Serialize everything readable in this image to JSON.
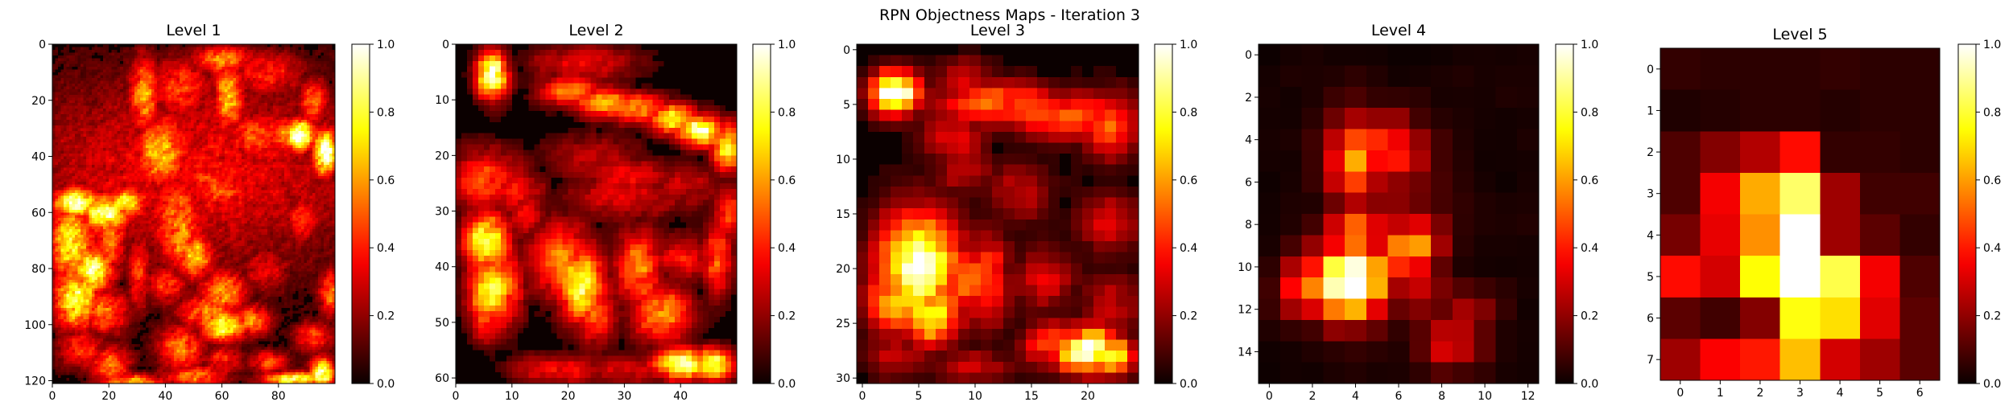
{
  "figure": {
    "title": "RPN Objectness Maps - Iteration 3"
  },
  "chart_data": [
    {
      "type": "heatmap",
      "title": "Level 1",
      "colormap": "hot",
      "colorbar_ticks": [
        "0.0",
        "0.2",
        "0.4",
        "0.6",
        "0.8",
        "1.0"
      ],
      "grid": {
        "rows": 121,
        "cols": 100
      },
      "x_ticks": [
        0,
        20,
        40,
        60,
        80
      ],
      "y_ticks": [
        0,
        20,
        40,
        60,
        80,
        100,
        120
      ],
      "blobs": [
        [
          50,
          45,
          50,
          25,
          0.3
        ],
        [
          60,
          5,
          8,
          4,
          0.5
        ],
        [
          62,
          18,
          4,
          10,
          0.6
        ],
        [
          120,
          5,
          5,
          4,
          0.5
        ],
        [
          300,
          24,
          5,
          4,
          0.4
        ],
        [
          285,
          8,
          5,
          6,
          0.3
        ],
        [
          75,
          10,
          10,
          6,
          0.35
        ],
        [
          60,
          20,
          8,
          10,
          0.25
        ],
        [
          45,
          15,
          8,
          8,
          0.4
        ],
        [
          38,
          38,
          7,
          10,
          0.6
        ],
        [
          44,
          62,
          7,
          12,
          0.5
        ],
        [
          32,
          18,
          4,
          10,
          0.55
        ],
        [
          45,
          35,
          8,
          5,
          0.35
        ],
        [
          72,
          32,
          8,
          6,
          0.45
        ],
        [
          82,
          32,
          5,
          5,
          0.5
        ],
        [
          87,
          32,
          4,
          4,
          1.0
        ],
        [
          96,
          38,
          3,
          6,
          1.0
        ],
        [
          92,
          20,
          4,
          6,
          0.45
        ],
        [
          55,
          48,
          8,
          5,
          0.4
        ],
        [
          60,
          52,
          7,
          4,
          0.45
        ],
        [
          8,
          56,
          6,
          4,
          0.9
        ],
        [
          18,
          60,
          6,
          5,
          0.85
        ],
        [
          26,
          56,
          5,
          4,
          0.7
        ],
        [
          6,
          70,
          6,
          10,
          0.7
        ],
        [
          14,
          80,
          5,
          6,
          0.85
        ],
        [
          8,
          90,
          6,
          8,
          0.75
        ],
        [
          20,
          70,
          4,
          8,
          0.5
        ],
        [
          18,
          95,
          6,
          6,
          0.5
        ],
        [
          45,
          67,
          4,
          10,
          0.55
        ],
        [
          50,
          75,
          5,
          6,
          0.6
        ],
        [
          40,
          85,
          5,
          5,
          0.4
        ],
        [
          60,
          88,
          6,
          6,
          0.55
        ],
        [
          30,
          80,
          3,
          10,
          0.4
        ],
        [
          55,
          95,
          8,
          5,
          0.5
        ],
        [
          60,
          100,
          6,
          4,
          0.8
        ],
        [
          70,
          98,
          5,
          4,
          0.5
        ],
        [
          45,
          108,
          6,
          6,
          0.5
        ],
        [
          50,
          118,
          8,
          3,
          0.5
        ],
        [
          10,
          108,
          6,
          5,
          0.4
        ],
        [
          20,
          114,
          5,
          5,
          0.5
        ],
        [
          28,
          120,
          8,
          2,
          0.6
        ],
        [
          60,
          112,
          5,
          4,
          0.35
        ],
        [
          85,
          119,
          8,
          2,
          0.8
        ],
        [
          95,
          117,
          3,
          4,
          0.9
        ],
        [
          76,
          113,
          5,
          3,
          0.4
        ],
        [
          92,
          104,
          5,
          4,
          0.4
        ],
        [
          98,
          88,
          3,
          6,
          0.5
        ],
        [
          75,
          80,
          6,
          6,
          0.3
        ],
        [
          88,
          62,
          5,
          6,
          0.35
        ]
      ],
      "noise": 0.1,
      "threshold": 0.08,
      "seed": 11
    },
    {
      "type": "heatmap",
      "title": "Level 2",
      "colormap": "hot",
      "colorbar_ticks": [
        "0.0",
        "0.2",
        "0.4",
        "0.6",
        "0.8",
        "1.0"
      ],
      "grid": {
        "rows": 61,
        "cols": 50
      },
      "x_ticks": [
        0,
        10,
        20,
        30,
        40
      ],
      "y_ticks": [
        0,
        10,
        20,
        30,
        40,
        50,
        60
      ],
      "blobs": [
        [
          6,
          5,
          2,
          3,
          1.0
        ],
        [
          22,
          3,
          7,
          3,
          0.3
        ],
        [
          20,
          8,
          4,
          2,
          0.55
        ],
        [
          26,
          10,
          4,
          2,
          0.6
        ],
        [
          32,
          11,
          4,
          2,
          0.55
        ],
        [
          38,
          13,
          3,
          2,
          0.8
        ],
        [
          43,
          15,
          3,
          2,
          0.9
        ],
        [
          48,
          18,
          2,
          3,
          0.8
        ],
        [
          30,
          23,
          6,
          2,
          0.35
        ],
        [
          24,
          20,
          6,
          3,
          0.25
        ],
        [
          5,
          24,
          5,
          4,
          0.45
        ],
        [
          10,
          26,
          4,
          3,
          0.35
        ],
        [
          30,
          27,
          8,
          3,
          0.3
        ],
        [
          40,
          25,
          5,
          3,
          0.25
        ],
        [
          5,
          35,
          3,
          4,
          0.8
        ],
        [
          6,
          44,
          3,
          5,
          0.75
        ],
        [
          5,
          49,
          2,
          3,
          0.5
        ],
        [
          9,
          43,
          2,
          5,
          0.5
        ],
        [
          18,
          38,
          4,
          5,
          0.55
        ],
        [
          22,
          43,
          3,
          5,
          0.8
        ],
        [
          24,
          48,
          3,
          4,
          0.45
        ],
        [
          32,
          40,
          3,
          5,
          0.55
        ],
        [
          36,
          48,
          4,
          4,
          0.55
        ],
        [
          40,
          38,
          4,
          3,
          0.35
        ],
        [
          46,
          38,
          2,
          5,
          0.45
        ],
        [
          48,
          30,
          2,
          4,
          0.4
        ],
        [
          18,
          58,
          6,
          2,
          0.35
        ],
        [
          30,
          58,
          6,
          2,
          0.3
        ],
        [
          40,
          57,
          4,
          2,
          0.9
        ],
        [
          45,
          57,
          3,
          2,
          0.85
        ],
        [
          12,
          30,
          3,
          4,
          0.3
        ]
      ],
      "noise": 0.06,
      "threshold": 0.08,
      "seed": 23
    },
    {
      "type": "heatmap",
      "title": "Level 3",
      "colormap": "hot",
      "colorbar_ticks": [
        "0.0",
        "0.2",
        "0.4",
        "0.6",
        "0.8",
        "1.0"
      ],
      "grid": {
        "rows": 31,
        "cols": 25
      },
      "x_ticks": [
        0,
        5,
        10,
        15,
        20
      ],
      "y_ticks": [
        0,
        5,
        10,
        15,
        20,
        25,
        30
      ],
      "blobs": [
        [
          3,
          4,
          1.6,
          1.4,
          1.0
        ],
        [
          9,
          3,
          2,
          1.5,
          0.3
        ],
        [
          12,
          5,
          4,
          1.5,
          0.5
        ],
        [
          18,
          6,
          4,
          1.5,
          0.5
        ],
        [
          22,
          7,
          2,
          2,
          0.45
        ],
        [
          8,
          8,
          2,
          2,
          0.3
        ],
        [
          9,
          11,
          2,
          1.5,
          0.25
        ],
        [
          14,
          13,
          2,
          2,
          0.25
        ],
        [
          22,
          16,
          2,
          2,
          0.3
        ],
        [
          5,
          20,
          2.5,
          3.5,
          1.0
        ],
        [
          9,
          21,
          2,
          2,
          0.6
        ],
        [
          11,
          21,
          1.5,
          3,
          0.45
        ],
        [
          3,
          23,
          2,
          2,
          0.6
        ],
        [
          6,
          24,
          2,
          2,
          0.8
        ],
        [
          16,
          21,
          2,
          2,
          0.3
        ],
        [
          22,
          23,
          2,
          2,
          0.25
        ],
        [
          17,
          27,
          2,
          1.5,
          0.45
        ],
        [
          20,
          27.5,
          2,
          1.5,
          0.95
        ],
        [
          22,
          28,
          1.5,
          1.2,
          0.8
        ],
        [
          10,
          29,
          3,
          1,
          0.25
        ],
        [
          3,
          28,
          2,
          1.5,
          0.25
        ]
      ],
      "noise": 0.05,
      "threshold": 0.05,
      "seed": 37
    },
    {
      "type": "heatmap",
      "title": "Level 4",
      "colormap": "hot",
      "colorbar_ticks": [
        "0.0",
        "0.2",
        "0.4",
        "0.6",
        "0.8",
        "1.0"
      ],
      "grid": {
        "rows": 16,
        "cols": 13
      },
      "x_ticks": [
        0,
        2,
        4,
        6,
        8,
        10,
        12
      ],
      "y_ticks": [
        0,
        2,
        4,
        6,
        8,
        10,
        12,
        14
      ],
      "blobs": [
        [
          3.7,
          10.6,
          1.3,
          1.3,
          1.0
        ],
        [
          4,
          8.5,
          1,
          1,
          0.6
        ],
        [
          4,
          5,
          1,
          1.5,
          0.5
        ],
        [
          5.5,
          4.5,
          1.2,
          1.2,
          0.4
        ],
        [
          2,
          11,
          1,
          1,
          0.55
        ],
        [
          6.5,
          9,
          1.1,
          1,
          0.6
        ],
        [
          8.5,
          13.5,
          1,
          0.9,
          0.35
        ],
        [
          9,
          12,
          1,
          0.8,
          0.25
        ],
        [
          7,
          11,
          1,
          1,
          0.25
        ],
        [
          6,
          6.5,
          1.5,
          1.5,
          0.2
        ]
      ],
      "noise": 0.04,
      "threshold": 0.0,
      "seed": 41
    },
    {
      "type": "heatmap",
      "title": "Level 5",
      "colormap": "hot",
      "colorbar_ticks": [
        "0.0",
        "0.2",
        "0.4",
        "0.6",
        "0.8",
        "1.0"
      ],
      "grid": {
        "rows": 8,
        "cols": 7
      },
      "x_ticks": [
        0,
        1,
        2,
        3,
        4,
        5,
        6
      ],
      "y_ticks": [
        0,
        1,
        2,
        3,
        4,
        5,
        6,
        7
      ],
      "values": [
        [
          0.06,
          0.05,
          0.05,
          0.05,
          0.06,
          0.05,
          0.05
        ],
        [
          0.03,
          0.04,
          0.05,
          0.05,
          0.04,
          0.05,
          0.05
        ],
        [
          0.1,
          0.18,
          0.25,
          0.38,
          0.06,
          0.06,
          0.05
        ],
        [
          0.1,
          0.35,
          0.62,
          0.85,
          0.22,
          0.08,
          0.08
        ],
        [
          0.16,
          0.33,
          0.58,
          1.0,
          0.22,
          0.12,
          0.06
        ],
        [
          0.38,
          0.3,
          0.75,
          1.0,
          0.82,
          0.35,
          0.1
        ],
        [
          0.12,
          0.08,
          0.18,
          0.76,
          0.7,
          0.32,
          0.12
        ],
        [
          0.22,
          0.36,
          0.4,
          0.65,
          0.3,
          0.22,
          0.12
        ]
      ]
    }
  ]
}
